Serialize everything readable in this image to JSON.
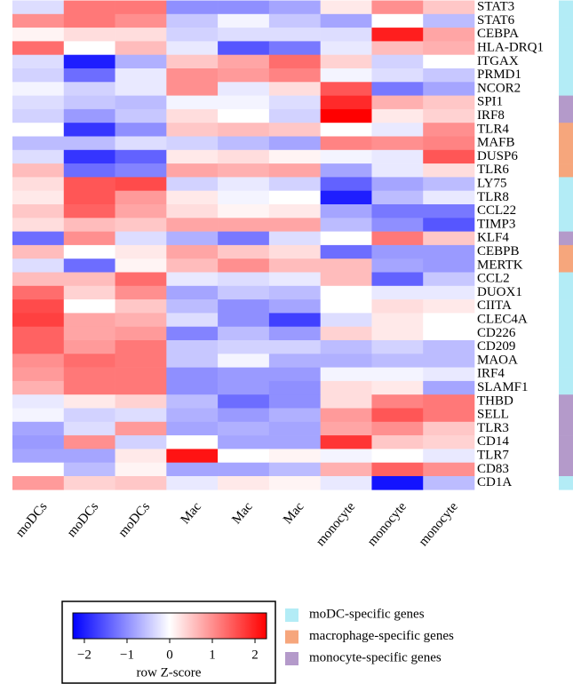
{
  "chart_data": {
    "type": "heatmap",
    "rows": [
      "STAT3",
      "STAT6",
      "CEBPA",
      "HLA-DRQ1",
      "ITGAX",
      "PRMD1",
      "NCOR2",
      "SPI1",
      "IRF8",
      "TLR4",
      "MAFB",
      "DUSP6",
      "TLR6",
      "LY75",
      "TLR8",
      "CCL22",
      "TIMP3",
      "KLF4",
      "CEBPB",
      "MERTK",
      "CCL2",
      "DUOX1",
      "CIITA",
      "CLEC4A",
      "CD226",
      "CD209",
      "MAOA",
      "IRF4",
      "SLAMF1",
      "THBD",
      "SELL",
      "TLR3",
      "CD14",
      "TLR7",
      "CD83",
      "CD1A"
    ],
    "columns": [
      "moDCs",
      "moDCs",
      "moDCs",
      "Mac",
      "Mac",
      "Mac",
      "monocyte",
      "monocyte",
      "monocyte"
    ],
    "values": [
      [
        -0.3,
        1.2,
        1.2,
        -1,
        -1,
        -0.8,
        0.2,
        1.0,
        0.5
      ],
      [
        1.0,
        1.2,
        1.0,
        -0.5,
        -0.1,
        -0.5,
        -0.8,
        0.0,
        -0.6
      ],
      [
        0.1,
        0.3,
        0.3,
        -0.4,
        -0.3,
        -0.3,
        -0.3,
        2.0,
        0.8
      ],
      [
        1.3,
        0.0,
        0.6,
        -0.2,
        -1.5,
        -1.2,
        -0.2,
        0.6,
        0.7
      ],
      [
        -0.3,
        -2.0,
        -0.7,
        0.5,
        0.8,
        1.3,
        0.4,
        -0.4,
        0.0
      ],
      [
        -0.4,
        -1.3,
        -0.2,
        1.0,
        0.9,
        1.1,
        -0.1,
        -0.3,
        -0.5
      ],
      [
        -0.1,
        -0.4,
        -0.2,
        1.0,
        -0.2,
        0.3,
        1.5,
        -1.2,
        -0.8
      ],
      [
        -0.3,
        -0.5,
        -0.6,
        -0.1,
        -0.1,
        -0.3,
        1.9,
        0.7,
        0.5
      ],
      [
        -0.4,
        -0.9,
        -0.5,
        0.3,
        0.0,
        -0.4,
        2.3,
        0.2,
        0.4
      ],
      [
        0.0,
        -1.8,
        -1.0,
        0.5,
        0.6,
        0.5,
        0.0,
        -0.2,
        1.0
      ],
      [
        -0.6,
        -0.6,
        -0.3,
        -0.4,
        -0.6,
        -0.8,
        1.1,
        1.0,
        1.1
      ],
      [
        -0.3,
        -1.8,
        -1.4,
        0.2,
        0.3,
        0.1,
        -0.1,
        -0.2,
        1.5
      ],
      [
        0.6,
        -1.3,
        -1.1,
        0.8,
        0.7,
        0.8,
        -0.8,
        -0.2,
        0.3
      ],
      [
        0.3,
        1.5,
        1.6,
        -0.4,
        -0.2,
        -0.4,
        -1.4,
        -0.8,
        -0.6
      ],
      [
        0.2,
        1.5,
        0.9,
        0.2,
        -0.1,
        0.0,
        -2.0,
        -0.6,
        -0.2
      ],
      [
        0.5,
        1.4,
        0.8,
        0.3,
        0.1,
        0.2,
        -0.8,
        -1.2,
        -1.2
      ],
      [
        0.3,
        0.6,
        0.5,
        0.8,
        0.8,
        0.8,
        -0.6,
        -1.0,
        -1.5
      ],
      [
        -1.3,
        1.0,
        -0.3,
        -0.7,
        -1.2,
        -0.3,
        0.0,
        1.2,
        0.5
      ],
      [
        0.6,
        0.0,
        0.2,
        0.8,
        0.5,
        0.3,
        -1.3,
        -0.9,
        -0.9
      ],
      [
        -0.3,
        -1.3,
        0.1,
        0.6,
        1.0,
        0.6,
        0.6,
        -0.8,
        -0.9
      ],
      [
        0.6,
        0.6,
        1.3,
        -0.2,
        -0.3,
        -0.2,
        0.6,
        -1.4,
        -0.5
      ],
      [
        1.3,
        0.4,
        1.0,
        -0.8,
        -0.5,
        -0.6,
        0.0,
        -0.2,
        -0.2
      ],
      [
        1.6,
        0.0,
        0.5,
        -0.6,
        -1.0,
        -0.8,
        0.0,
        0.3,
        0.2
      ],
      [
        1.7,
        0.8,
        0.7,
        -0.3,
        -1.0,
        -1.7,
        -0.3,
        0.2,
        0.0
      ],
      [
        1.4,
        0.8,
        0.9,
        -1.1,
        -0.6,
        -0.9,
        0.4,
        0.2,
        0.0
      ],
      [
        1.4,
        0.9,
        1.2,
        -0.5,
        -0.4,
        -0.4,
        -0.6,
        -0.4,
        -0.6
      ],
      [
        1.0,
        1.3,
        1.2,
        -0.5,
        -0.1,
        -0.7,
        -0.7,
        -0.6,
        -0.6
      ],
      [
        0.9,
        1.2,
        1.2,
        -1.0,
        -0.9,
        -0.9,
        -0.1,
        -0.1,
        -0.2
      ],
      [
        0.7,
        1.2,
        1.2,
        -1.0,
        -0.9,
        -1.0,
        0.3,
        0.2,
        -0.8
      ],
      [
        -0.2,
        0.2,
        0.4,
        -0.6,
        -1.3,
        -1.0,
        0.3,
        1.1,
        1.2
      ],
      [
        -0.1,
        -0.4,
        -0.3,
        -0.7,
        -0.9,
        -0.7,
        0.9,
        1.5,
        1.2
      ],
      [
        -0.8,
        -0.3,
        0.9,
        -0.8,
        -0.7,
        -0.8,
        0.8,
        1.0,
        0.5
      ],
      [
        -0.9,
        1.0,
        -0.4,
        0.0,
        -0.8,
        -0.8,
        1.8,
        0.5,
        0.4
      ],
      [
        -0.8,
        -0.8,
        0.2,
        2.1,
        0.0,
        0.1,
        -0.1,
        0.0,
        -0.2
      ],
      [
        0.0,
        -0.6,
        0.1,
        -0.8,
        -0.8,
        -0.6,
        0.7,
        1.4,
        1.0
      ],
      [
        0.9,
        0.4,
        0.5,
        -0.2,
        0.2,
        0.1,
        -0.2,
        -2.1,
        -0.6
      ]
    ],
    "row_group": [
      0,
      0,
      0,
      0,
      0,
      0,
      0,
      2,
      2,
      1,
      1,
      1,
      1,
      0,
      0,
      0,
      0,
      2,
      1,
      1,
      0,
      0,
      0,
      0,
      0,
      0,
      0,
      0,
      0,
      2,
      2,
      2,
      2,
      2,
      2,
      0
    ],
    "groups": [
      {
        "name": "moDC-specific genes",
        "color": "#b3ecf6"
      },
      {
        "name": "macrophage-specific genes",
        "color": "#f6a67c"
      },
      {
        "name": "monocyte-specific genes",
        "color": "#b49aca"
      }
    ],
    "colormap": [
      "#0000ff",
      "#ffffff",
      "#ff0000"
    ],
    "clim": [
      -2.27,
      2.27
    ],
    "colorbar_ticks": [
      {
        "value": -2,
        "label": "−2"
      },
      {
        "value": -1,
        "label": "−1"
      },
      0,
      1,
      2
    ],
    "colorbar_label": "row Z-score"
  }
}
